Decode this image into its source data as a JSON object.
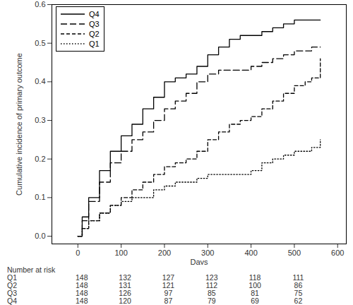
{
  "chart_data": {
    "type": "line",
    "xlabel": "Days",
    "ylabel": "Cumulative incidence of primary outcome",
    "x": [
      0,
      10,
      25,
      50,
      75,
      100,
      125,
      150,
      175,
      200,
      225,
      250,
      275,
      300,
      325,
      350,
      375,
      400,
      425,
      450,
      475,
      500,
      525,
      540,
      555,
      560
    ],
    "series": [
      {
        "name": "Q4",
        "color": "#000000",
        "line_style": "solid",
        "values": [
          0,
          0.05,
          0.1,
          0.17,
          0.22,
          0.26,
          0.29,
          0.33,
          0.36,
          0.4,
          0.41,
          0.42,
          0.44,
          0.47,
          0.49,
          0.51,
          0.52,
          0.52,
          0.53,
          0.54,
          0.55,
          0.56,
          0.56,
          0.56,
          0.56,
          0.56
        ]
      },
      {
        "name": "Q3",
        "color": "#000000",
        "line_style": "longdash",
        "values": [
          0,
          0.04,
          0.09,
          0.14,
          0.19,
          0.22,
          0.25,
          0.27,
          0.3,
          0.33,
          0.35,
          0.37,
          0.4,
          0.42,
          0.43,
          0.43,
          0.43,
          0.44,
          0.45,
          0.46,
          0.47,
          0.48,
          0.48,
          0.49,
          0.49,
          0.49
        ]
      },
      {
        "name": "Q2",
        "color": "#000000",
        "line_style": "dashed",
        "values": [
          0,
          0.02,
          0.04,
          0.06,
          0.08,
          0.1,
          0.12,
          0.14,
          0.16,
          0.18,
          0.19,
          0.2,
          0.22,
          0.25,
          0.27,
          0.29,
          0.3,
          0.31,
          0.33,
          0.35,
          0.37,
          0.39,
          0.4,
          0.41,
          0.41,
          0.46
        ]
      },
      {
        "name": "Q1",
        "color": "#000000",
        "line_style": "dotted",
        "values": [
          0,
          0.02,
          0.04,
          0.06,
          0.08,
          0.09,
          0.1,
          0.1,
          0.12,
          0.13,
          0.14,
          0.14,
          0.15,
          0.16,
          0.16,
          0.16,
          0.16,
          0.17,
          0.19,
          0.2,
          0.21,
          0.22,
          0.22,
          0.23,
          0.23,
          0.25
        ]
      }
    ],
    "xlim": [
      -60,
      620
    ],
    "xticks": [
      0,
      100,
      200,
      300,
      400,
      500,
      600
    ],
    "ylim": [
      -0.02,
      0.6
    ],
    "yticks": [
      {
        "value": 0,
        "label": "0.0"
      },
      0.1,
      0.2,
      0.3,
      0.4,
      0.5,
      0.6
    ],
    "legend": "top-left",
    "risk_table": {
      "title": "Number at risk",
      "times": [
        0,
        100,
        200,
        300,
        400,
        500
      ],
      "rows": [
        {
          "name": "Q1",
          "values": [
            148,
            132,
            127,
            123,
            118,
            111
          ]
        },
        {
          "name": "Q2",
          "values": [
            148,
            131,
            121,
            112,
            100,
            86
          ]
        },
        {
          "name": "Q3",
          "values": [
            148,
            126,
            97,
            85,
            81,
            75
          ]
        },
        {
          "name": "Q4",
          "values": [
            148,
            120,
            87,
            79,
            69,
            62
          ]
        }
      ]
    }
  }
}
